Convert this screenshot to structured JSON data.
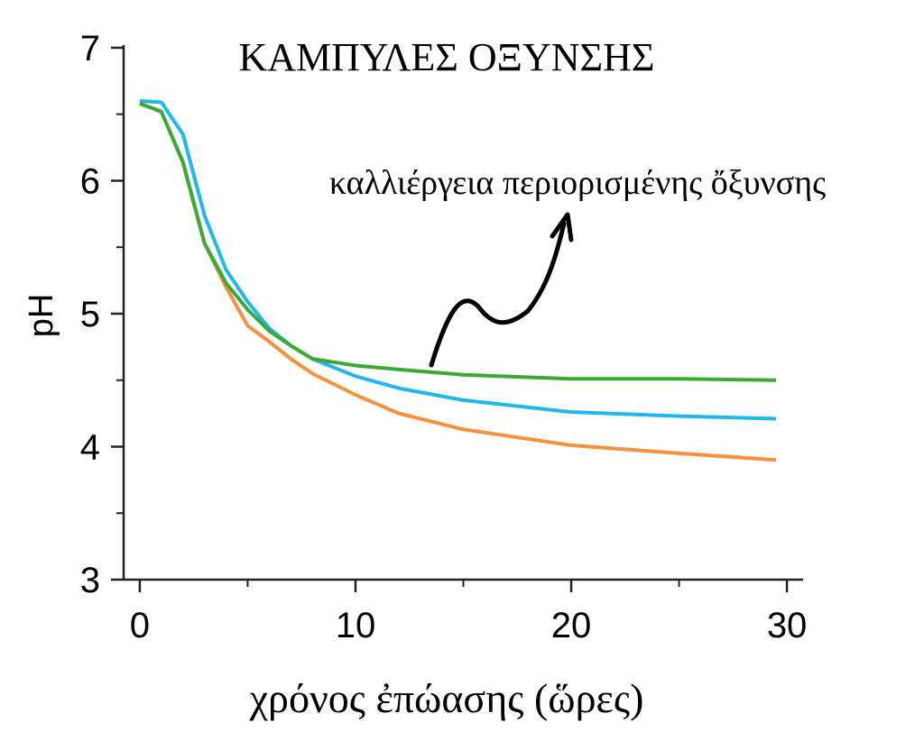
{
  "chart_data": {
    "type": "line",
    "title": "ΚΑΜΠΥΛΕΣ ΟΞΥΝΣΗΣ",
    "x_label": "χρόνος ἐπώασης (ὥρες)",
    "y_label": "pH",
    "annotation": "καλλιέργεια περιορισμένης ὄξυνσης",
    "x": [
      0,
      1,
      2,
      3,
      4,
      5,
      6,
      7,
      8,
      10,
      12,
      15,
      20,
      25,
      29.5
    ],
    "series": [
      {
        "color": "#1fb8ec",
        "values": [
          6.6,
          6.59,
          6.35,
          5.74,
          5.33,
          5.09,
          4.89,
          4.76,
          4.66,
          4.53,
          4.44,
          4.35,
          4.26,
          4.23,
          4.21
        ]
      },
      {
        "color": "#f7913d",
        "values": [
          6.58,
          6.52,
          6.14,
          5.53,
          5.2,
          4.91,
          4.79,
          4.66,
          4.55,
          4.39,
          4.25,
          4.13,
          4.01,
          3.95,
          3.9
        ]
      },
      {
        "color": "#3aaa35",
        "values": [
          6.58,
          6.52,
          6.14,
          5.53,
          5.23,
          5.03,
          4.87,
          4.76,
          4.66,
          4.61,
          4.58,
          4.54,
          4.51,
          4.51,
          4.5
        ]
      }
    ],
    "xlim": [
      -0.75,
      30.75
    ],
    "ylim": [
      3,
      7.02
    ],
    "xticks": [
      0,
      10,
      20,
      30
    ],
    "yticks": [
      3,
      4,
      5,
      6,
      7
    ],
    "xminor": [
      5,
      15,
      25
    ],
    "yminor": [
      3.5,
      4.5,
      5.5,
      6.5
    ]
  }
}
